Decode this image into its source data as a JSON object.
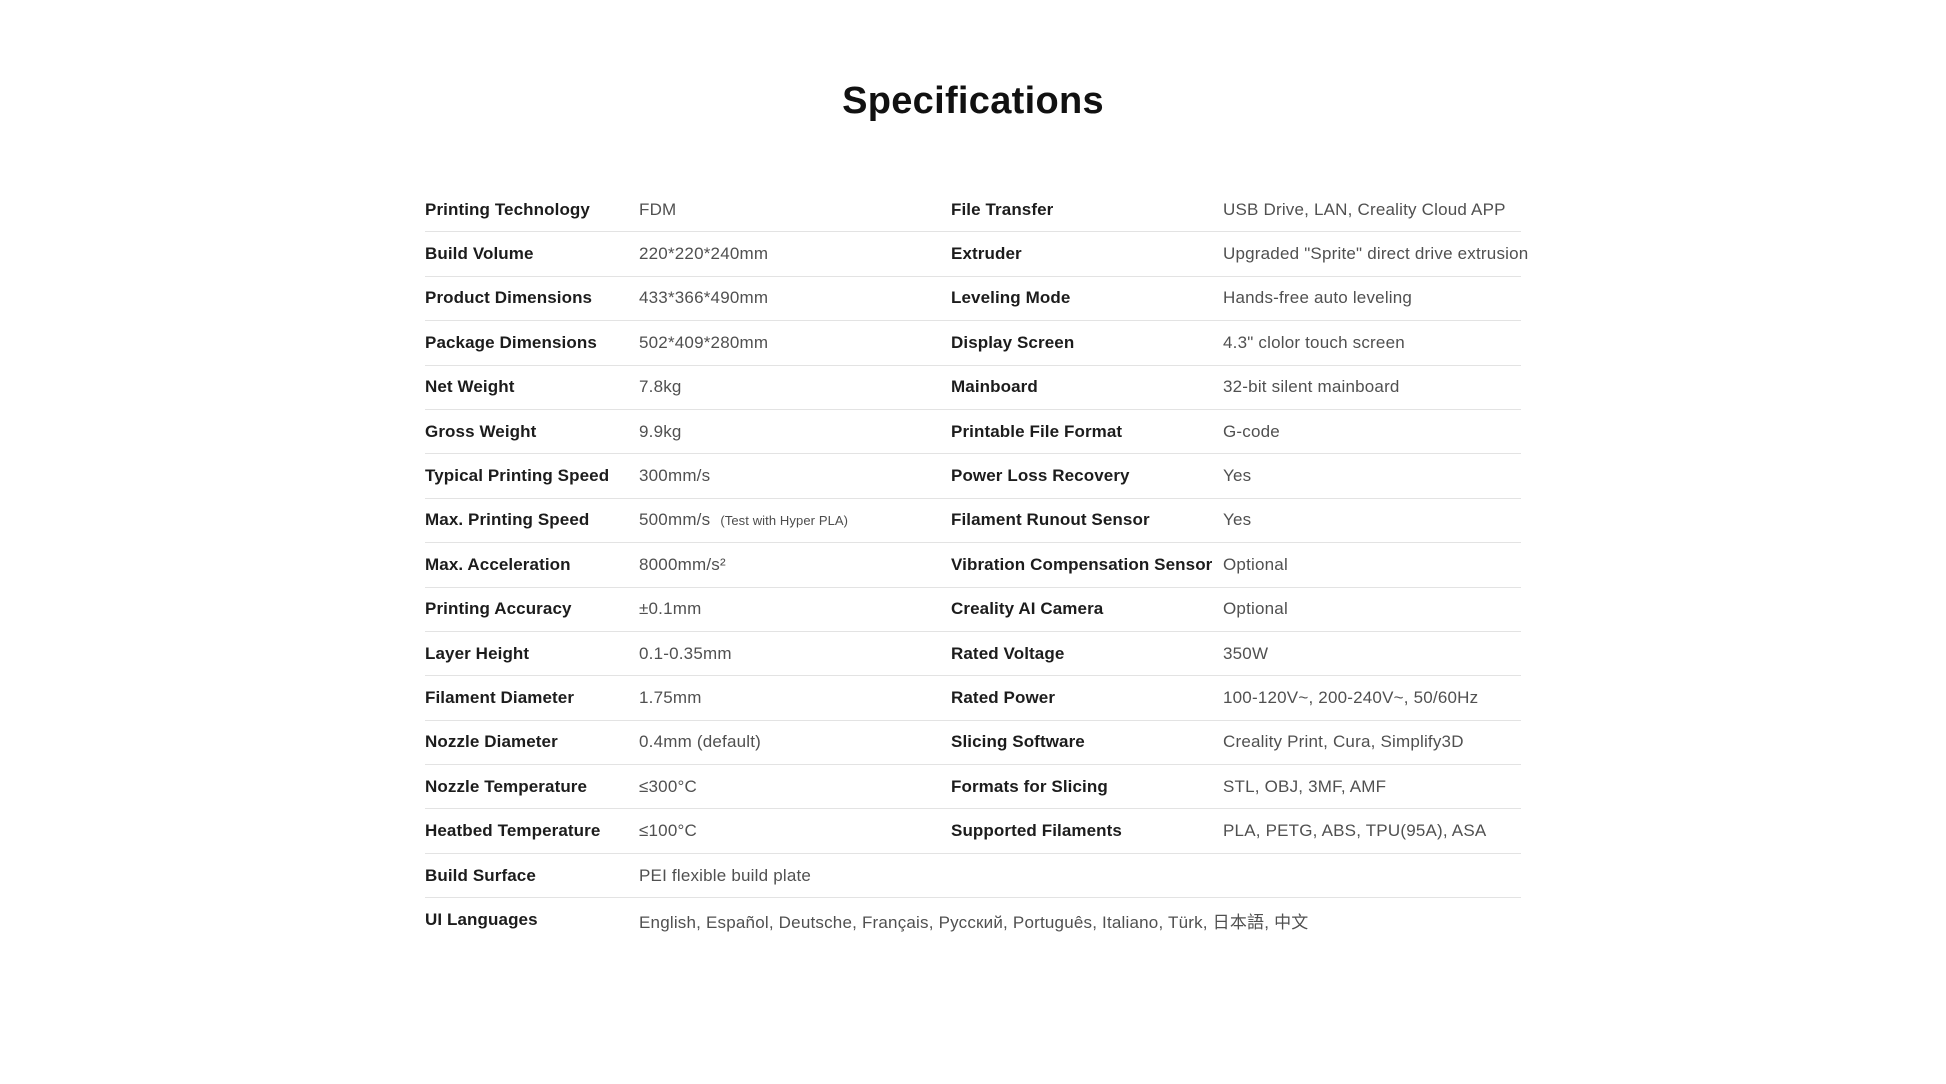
{
  "title": "Specifications",
  "colors": {
    "background": "#ffffff",
    "title": "#111111",
    "label": "#1c1c1c",
    "value": "#505050",
    "divider": "#e3e3e3"
  },
  "table": {
    "rows": [
      {
        "left": {
          "label": "Printing Technology",
          "value": "FDM"
        },
        "right": {
          "label": "File Transfer",
          "value": "USB Drive, LAN, Creality Cloud APP"
        }
      },
      {
        "left": {
          "label": "Build Volume",
          "value": "220*220*240mm"
        },
        "right": {
          "label": "Extruder",
          "value": "Upgraded \"Sprite\" direct drive extrusion"
        }
      },
      {
        "left": {
          "label": "Product Dimensions",
          "value": "433*366*490mm"
        },
        "right": {
          "label": "Leveling Mode",
          "value": "Hands-free auto leveling"
        }
      },
      {
        "left": {
          "label": "Package Dimensions",
          "value": "502*409*280mm"
        },
        "right": {
          "label": "Display Screen",
          "value": "4.3\" clolor touch screen"
        }
      },
      {
        "left": {
          "label": "Net Weight",
          "value": "7.8kg"
        },
        "right": {
          "label": "Mainboard",
          "value": "32-bit silent mainboard"
        }
      },
      {
        "left": {
          "label": "Gross Weight",
          "value": "9.9kg"
        },
        "right": {
          "label": "Printable File Format",
          "value": "G-code"
        }
      },
      {
        "left": {
          "label": "Typical Printing Speed",
          "value": "300mm/s"
        },
        "right": {
          "label": "Power Loss Recovery",
          "value": "Yes"
        }
      },
      {
        "left": {
          "label": "Max. Printing Speed",
          "value": "500mm/s",
          "note": "(Test with Hyper PLA)"
        },
        "right": {
          "label": "Filament Runout Sensor",
          "value": "Yes"
        }
      },
      {
        "left": {
          "label": "Max. Acceleration",
          "value": "8000mm/s²"
        },
        "right": {
          "label": "Vibration Compensation Sensor",
          "value": "Optional"
        }
      },
      {
        "left": {
          "label": "Printing Accuracy",
          "value": "±0.1mm"
        },
        "right": {
          "label": "Creality AI Camera",
          "value": "Optional"
        }
      },
      {
        "left": {
          "label": "Layer Height",
          "value": "0.1-0.35mm"
        },
        "right": {
          "label": "Rated Voltage",
          "value": "350W"
        }
      },
      {
        "left": {
          "label": "Filament Diameter",
          "value": "1.75mm"
        },
        "right": {
          "label": "Rated Power",
          "value": "100-120V~, 200-240V~, 50/60Hz"
        }
      },
      {
        "left": {
          "label": "Nozzle Diameter",
          "value": "0.4mm (default)"
        },
        "right": {
          "label": "Slicing Software",
          "value": "Creality Print, Cura, Simplify3D"
        }
      },
      {
        "left": {
          "label": "Nozzle Temperature",
          "value": "≤300°C"
        },
        "right": {
          "label": "Formats for Slicing",
          "value": "STL, OBJ, 3MF, AMF"
        }
      },
      {
        "left": {
          "label": "Heatbed Temperature",
          "value": "≤100°C"
        },
        "right": {
          "label": "Supported Filaments",
          "value": "PLA, PETG, ABS, TPU(95A), ASA"
        }
      }
    ],
    "wide_rows": [
      {
        "label": "Build Surface",
        "value": "PEI flexible build plate"
      },
      {
        "label": "UI Languages",
        "value": "English, Español, Deutsche, Français, Русский, Português, Italiano, Türk, 日本語, 中文"
      }
    ]
  }
}
